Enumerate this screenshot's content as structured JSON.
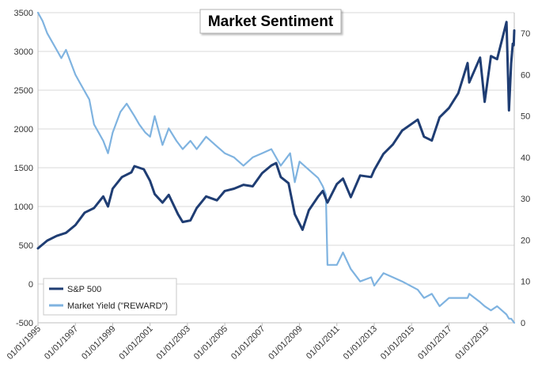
{
  "chart_data": {
    "type": "line",
    "title": "Market Sentiment",
    "x_tick_labels": [
      "01/01/1995",
      "01/01/1997",
      "01/01/1999",
      "01/01/2001",
      "01/01/2003",
      "01/01/2005",
      "01/01/2007",
      "01/01/2009",
      "01/01/2011",
      "01/01/2013",
      "01/01/2015",
      "01/01/2017",
      "01/01/2019"
    ],
    "xlim": [
      "1995-01-01",
      "2020-07-01"
    ],
    "ylim_left": [
      -500,
      3500
    ],
    "left_ticks": [
      -500,
      0,
      500,
      1000,
      1500,
      2000,
      2500,
      3000,
      3500
    ],
    "ylim_right": [
      0,
      75
    ],
    "right_ticks": [
      0,
      10,
      20,
      30,
      40,
      50,
      60,
      70
    ],
    "grid": true,
    "legend_position": "bottom-left",
    "colors": {
      "sp500": "#1f3d73",
      "yield": "#7fb3e0"
    },
    "series": [
      {
        "name": "S&P 500",
        "axis": "left",
        "points": [
          [
            "1995-01-01",
            460
          ],
          [
            "1995-07-01",
            560
          ],
          [
            "1996-01-01",
            620
          ],
          [
            "1996-07-01",
            660
          ],
          [
            "1997-01-01",
            760
          ],
          [
            "1997-07-01",
            920
          ],
          [
            "1998-01-01",
            980
          ],
          [
            "1998-07-01",
            1130
          ],
          [
            "1998-10-01",
            1000
          ],
          [
            "1999-01-01",
            1230
          ],
          [
            "1999-07-01",
            1380
          ],
          [
            "2000-01-01",
            1440
          ],
          [
            "2000-03-01",
            1520
          ],
          [
            "2000-09-01",
            1480
          ],
          [
            "2001-01-01",
            1330
          ],
          [
            "2001-04-01",
            1160
          ],
          [
            "2001-09-01",
            1050
          ],
          [
            "2002-01-01",
            1150
          ],
          [
            "2002-07-01",
            900
          ],
          [
            "2002-10-01",
            800
          ],
          [
            "2003-03-01",
            820
          ],
          [
            "2003-07-01",
            980
          ],
          [
            "2004-01-01",
            1130
          ],
          [
            "2004-08-01",
            1080
          ],
          [
            "2005-01-01",
            1200
          ],
          [
            "2005-07-01",
            1230
          ],
          [
            "2006-01-01",
            1280
          ],
          [
            "2006-07-01",
            1260
          ],
          [
            "2007-01-01",
            1430
          ],
          [
            "2007-07-01",
            1530
          ],
          [
            "2007-10-01",
            1560
          ],
          [
            "2008-01-01",
            1380
          ],
          [
            "2008-06-01",
            1300
          ],
          [
            "2008-10-01",
            900
          ],
          [
            "2009-03-01",
            700
          ],
          [
            "2009-07-01",
            950
          ],
          [
            "2010-01-01",
            1130
          ],
          [
            "2010-04-01",
            1200
          ],
          [
            "2010-07-01",
            1050
          ],
          [
            "2011-01-01",
            1290
          ],
          [
            "2011-05-01",
            1360
          ],
          [
            "2011-10-01",
            1120
          ],
          [
            "2012-04-01",
            1400
          ],
          [
            "2012-11-01",
            1380
          ],
          [
            "2013-01-01",
            1470
          ],
          [
            "2013-07-01",
            1680
          ],
          [
            "2014-01-01",
            1800
          ],
          [
            "2014-07-01",
            1980
          ],
          [
            "2015-05-01",
            2120
          ],
          [
            "2015-09-01",
            1900
          ],
          [
            "2016-02-01",
            1850
          ],
          [
            "2016-07-01",
            2150
          ],
          [
            "2017-01-01",
            2270
          ],
          [
            "2017-07-01",
            2460
          ],
          [
            "2018-01-01",
            2850
          ],
          [
            "2018-02-01",
            2600
          ],
          [
            "2018-09-01",
            2920
          ],
          [
            "2018-12-01",
            2350
          ],
          [
            "2019-04-01",
            2940
          ],
          [
            "2019-08-01",
            2900
          ],
          [
            "2020-02-01",
            3380
          ],
          [
            "2020-03-20",
            2240
          ],
          [
            "2020-05-01",
            2850
          ],
          [
            "2020-06-01",
            3100
          ],
          [
            "2020-06-20",
            3080
          ],
          [
            "2020-07-01",
            3270
          ]
        ]
      },
      {
        "name": "Market Yield (\"REWARD\")",
        "axis": "right",
        "points": [
          [
            "1995-01-01",
            75
          ],
          [
            "1995-04-01",
            73
          ],
          [
            "1995-07-01",
            70
          ],
          [
            "1996-01-01",
            66
          ],
          [
            "1996-04-01",
            64
          ],
          [
            "1996-07-01",
            66
          ],
          [
            "1997-01-01",
            60
          ],
          [
            "1997-04-01",
            58
          ],
          [
            "1997-10-01",
            54
          ],
          [
            "1998-01-01",
            48
          ],
          [
            "1998-07-01",
            44
          ],
          [
            "1998-10-01",
            41
          ],
          [
            "1999-01-01",
            46
          ],
          [
            "1999-06-01",
            51
          ],
          [
            "1999-10-01",
            53
          ],
          [
            "2000-03-01",
            50
          ],
          [
            "2000-06-01",
            48
          ],
          [
            "2000-10-01",
            46
          ],
          [
            "2001-01-01",
            45
          ],
          [
            "2001-04-01",
            50
          ],
          [
            "2001-09-01",
            43
          ],
          [
            "2002-01-01",
            47
          ],
          [
            "2002-06-01",
            44
          ],
          [
            "2002-10-01",
            42
          ],
          [
            "2003-03-01",
            44
          ],
          [
            "2003-07-01",
            42
          ],
          [
            "2004-01-01",
            45
          ],
          [
            "2004-07-01",
            43
          ],
          [
            "2005-01-01",
            41
          ],
          [
            "2005-07-01",
            40
          ],
          [
            "2006-01-01",
            38
          ],
          [
            "2006-07-01",
            40
          ],
          [
            "2007-01-01",
            41
          ],
          [
            "2007-07-01",
            42
          ],
          [
            "2008-01-01",
            38
          ],
          [
            "2008-07-01",
            41
          ],
          [
            "2008-10-01",
            34
          ],
          [
            "2009-01-01",
            39
          ],
          [
            "2009-07-01",
            37
          ],
          [
            "2010-01-01",
            35
          ],
          [
            "2010-04-01",
            33
          ],
          [
            "2010-06-01",
            31
          ],
          [
            "2010-07-01",
            14
          ],
          [
            "2011-01-01",
            14
          ],
          [
            "2011-05-01",
            17
          ],
          [
            "2011-10-01",
            13
          ],
          [
            "2012-04-01",
            10
          ],
          [
            "2012-11-01",
            11
          ],
          [
            "2013-01-01",
            9
          ],
          [
            "2013-07-01",
            12
          ],
          [
            "2014-01-01",
            11
          ],
          [
            "2014-07-01",
            10
          ],
          [
            "2015-05-01",
            8
          ],
          [
            "2015-09-01",
            6
          ],
          [
            "2016-02-01",
            7
          ],
          [
            "2016-07-01",
            4
          ],
          [
            "2017-01-01",
            6
          ],
          [
            "2017-07-01",
            6
          ],
          [
            "2018-01-01",
            6
          ],
          [
            "2018-02-01",
            7
          ],
          [
            "2018-09-01",
            5
          ],
          [
            "2018-12-01",
            4
          ],
          [
            "2019-04-01",
            3
          ],
          [
            "2019-08-01",
            4
          ],
          [
            "2020-02-01",
            2
          ],
          [
            "2020-03-20",
            1
          ],
          [
            "2020-05-01",
            1
          ],
          [
            "2020-07-01",
            0
          ]
        ]
      }
    ]
  }
}
